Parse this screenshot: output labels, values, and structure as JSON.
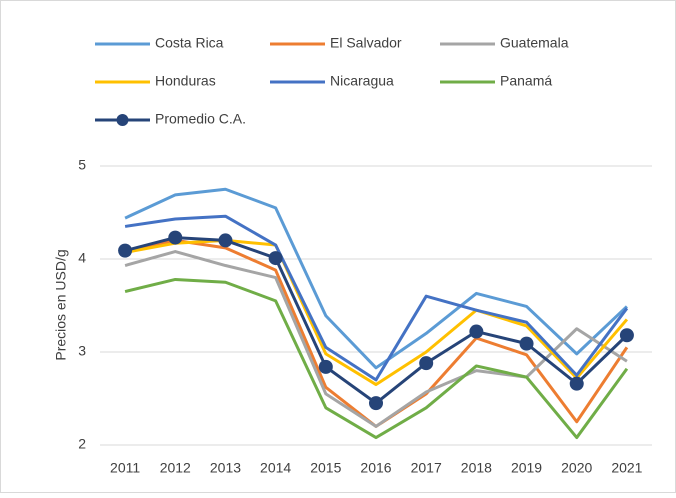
{
  "chart_data": {
    "type": "line",
    "y_label": "Precios en USD/g",
    "categories": [
      "2011",
      "2012",
      "2013",
      "2014",
      "2015",
      "2016",
      "2017",
      "2018",
      "2019",
      "2020",
      "2021"
    ],
    "series": [
      {
        "name": "Costa Rica",
        "color": "#5b9bd5",
        "values": [
          4.44,
          4.69,
          4.75,
          4.55,
          3.39,
          2.83,
          3.2,
          3.63,
          3.49,
          2.98,
          3.49
        ]
      },
      {
        "name": "El Salvador",
        "color": "#ed7d31",
        "values": [
          4.08,
          4.2,
          4.12,
          3.88,
          2.62,
          2.2,
          2.55,
          3.15,
          2.97,
          2.25,
          3.05
        ]
      },
      {
        "name": "Guatemala",
        "color": "#a5a5a5",
        "values": [
          3.93,
          4.08,
          3.93,
          3.8,
          2.55,
          2.2,
          2.57,
          2.8,
          2.73,
          3.25,
          2.9
        ]
      },
      {
        "name": "Honduras",
        "color": "#ffc000",
        "values": [
          4.07,
          4.17,
          4.2,
          4.15,
          2.98,
          2.65,
          3.0,
          3.45,
          3.28,
          2.72,
          3.35
        ]
      },
      {
        "name": "Nicaragua",
        "color": "#4472c4",
        "values": [
          4.35,
          4.43,
          4.46,
          4.15,
          3.05,
          2.7,
          3.6,
          3.45,
          3.32,
          2.75,
          3.47
        ]
      },
      {
        "name": "Panamá",
        "color": "#70ad47",
        "values": [
          3.65,
          3.78,
          3.75,
          3.55,
          2.4,
          2.08,
          2.4,
          2.85,
          2.73,
          2.08,
          2.82
        ]
      },
      {
        "name": "Promedio C.A.",
        "color": "#264478",
        "marker": true,
        "values": [
          4.09,
          4.23,
          4.2,
          4.01,
          2.84,
          2.45,
          2.88,
          3.22,
          3.09,
          2.66,
          3.18
        ]
      }
    ],
    "ylim": [
      2,
      5
    ],
    "yticks": [
      2,
      3,
      4,
      5
    ],
    "grid": true,
    "legend": "top"
  }
}
